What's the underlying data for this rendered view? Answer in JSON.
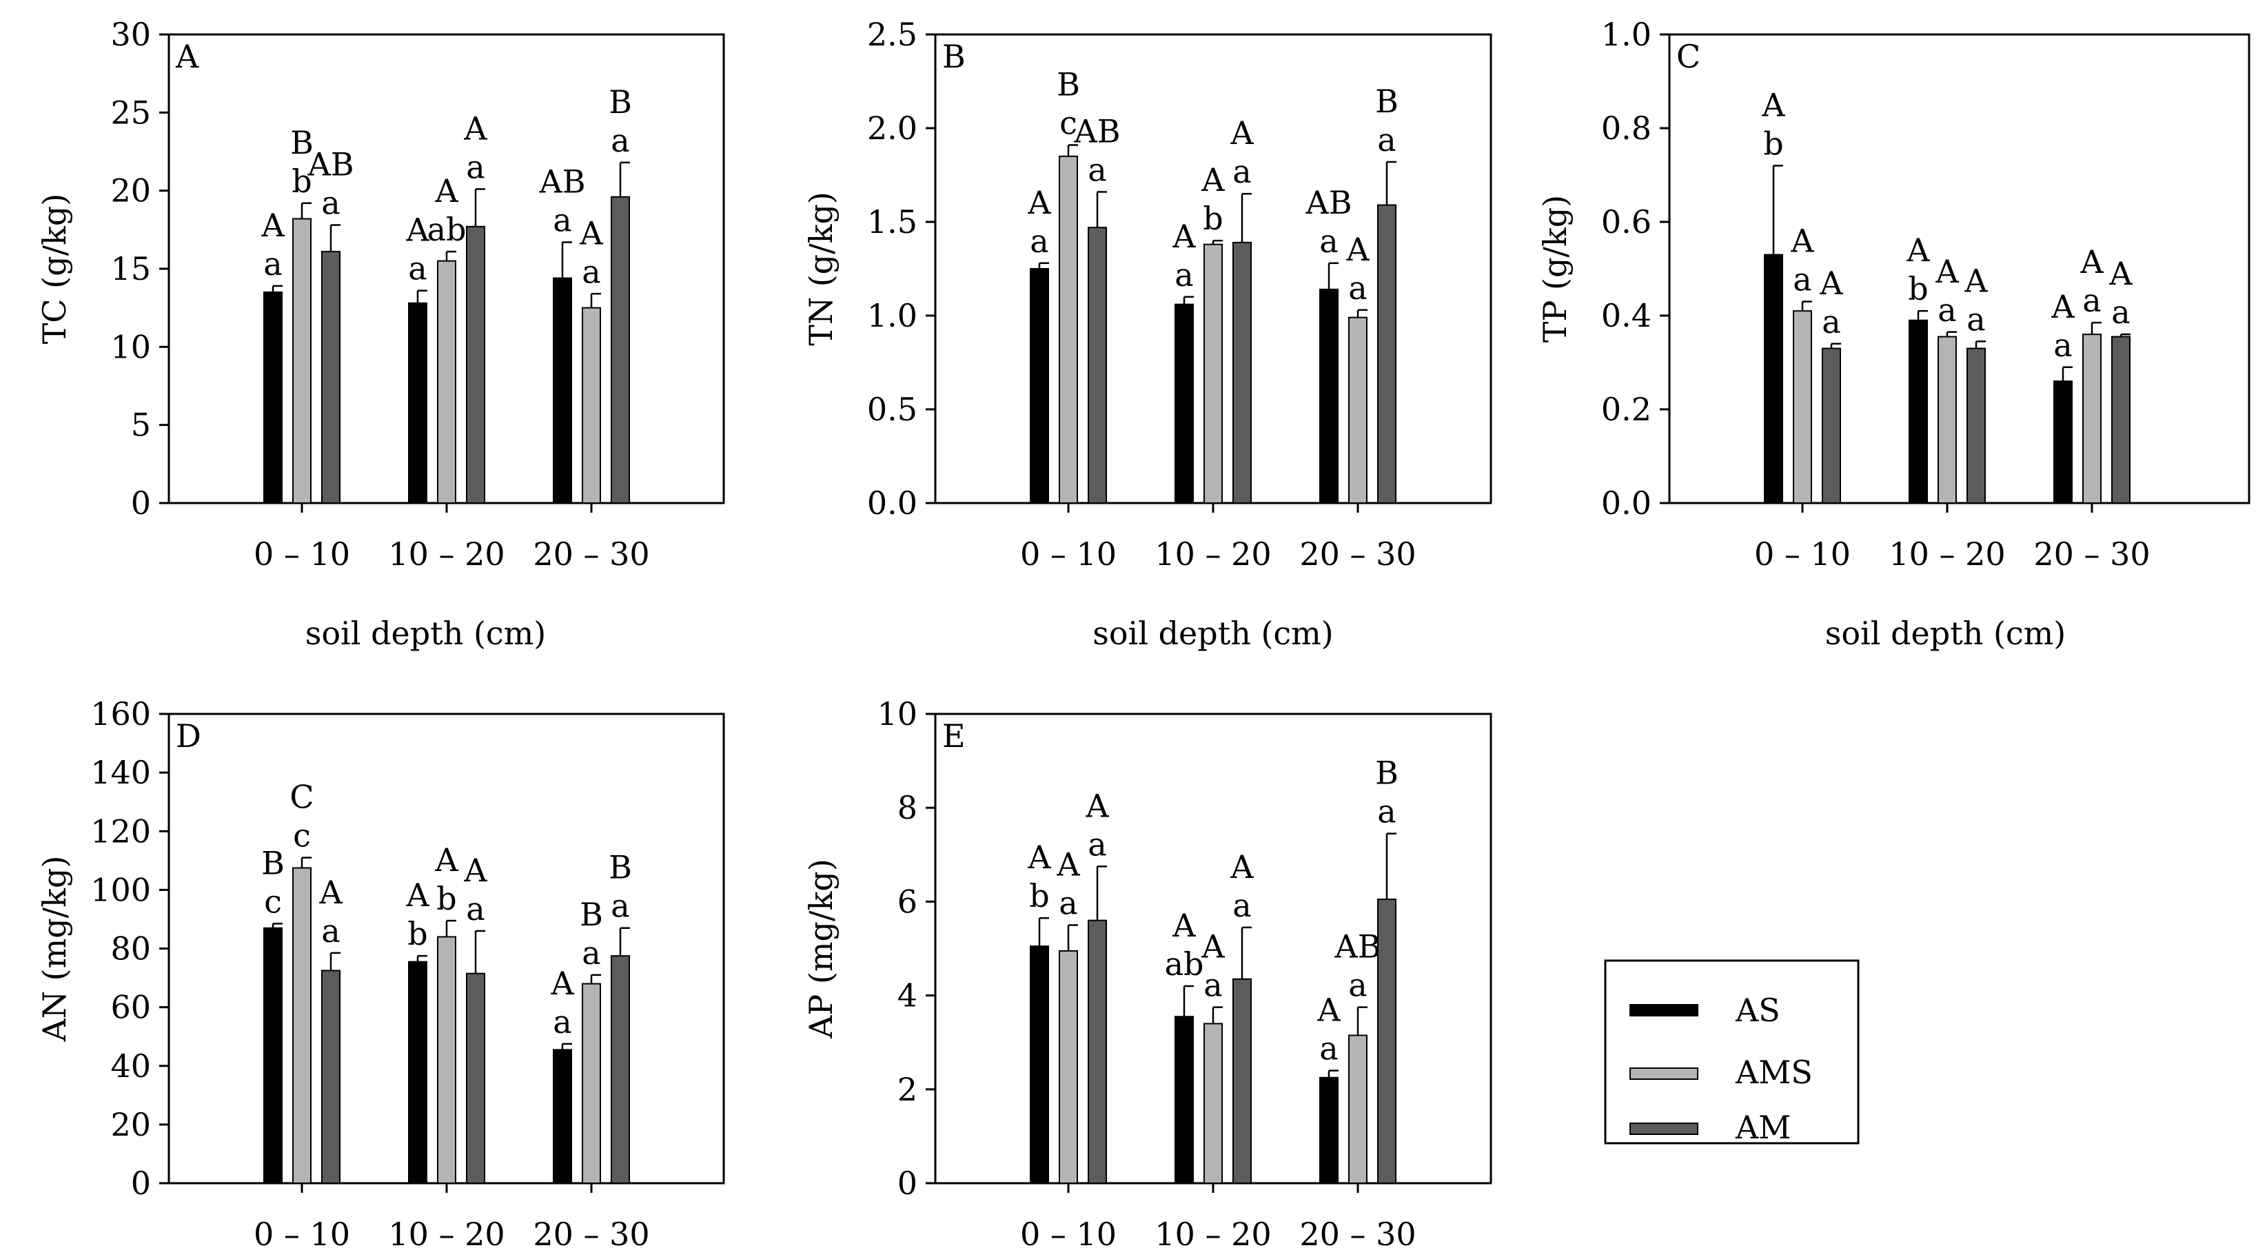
{
  "figure": {
    "xlabel_common": "soil depth (cm)",
    "legend_entries": [
      "AS",
      "AMS",
      "AM"
    ]
  },
  "series_colors": {
    "AS": "#000000",
    "AMS": "#b4b4b4",
    "AM": "#5c5c5c"
  },
  "chart_data": [
    {
      "id": "A",
      "type": "bar",
      "panel_label": "A",
      "ylabel": "TC (g/kg)",
      "xlabel": "soil depth (cm)",
      "ylim": [
        0,
        30
      ],
      "yticks": [
        "0",
        "5",
        "10",
        "15",
        "20",
        "25",
        "30"
      ],
      "categories": [
        "0 – 10",
        "10 – 20",
        "20 – 30"
      ],
      "series": [
        {
          "name": "AS",
          "values": [
            13.5,
            12.8,
            14.4
          ],
          "errors": [
            0.4,
            0.8,
            2.3
          ],
          "lower_letters": [
            "a",
            "a",
            "a"
          ],
          "upper_letters": [
            "A",
            "A",
            "AB"
          ]
        },
        {
          "name": "AMS",
          "values": [
            18.2,
            15.5,
            12.5
          ],
          "errors": [
            1.0,
            0.6,
            0.9
          ],
          "lower_letters": [
            "b",
            "ab",
            "a"
          ],
          "upper_letters": [
            "B",
            "A",
            "A"
          ]
        },
        {
          "name": "AM",
          "values": [
            16.1,
            17.7,
            19.6
          ],
          "errors": [
            1.7,
            2.4,
            2.2
          ],
          "lower_letters": [
            "a",
            "a",
            "a"
          ],
          "upper_letters": [
            "AB",
            "A",
            "B"
          ]
        }
      ]
    },
    {
      "id": "B",
      "type": "bar",
      "panel_label": "B",
      "ylabel": "TN (g/kg)",
      "xlabel": "soil depth (cm)",
      "ylim": [
        0,
        2.5
      ],
      "yticks": [
        "0.0",
        "0.5",
        "1.0",
        "1.5",
        "2.0",
        "2.5"
      ],
      "categories": [
        "0 – 10",
        "10 – 20",
        "20 – 30"
      ],
      "series": [
        {
          "name": "AS",
          "values": [
            1.25,
            1.06,
            1.14
          ],
          "errors": [
            0.03,
            0.04,
            0.14
          ],
          "lower_letters": [
            "a",
            "a",
            "a"
          ],
          "upper_letters": [
            "A",
            "A",
            "AB"
          ]
        },
        {
          "name": "AMS",
          "values": [
            1.85,
            1.38,
            0.99
          ],
          "errors": [
            0.06,
            0.02,
            0.04
          ],
          "lower_letters": [
            "c",
            "b",
            "a"
          ],
          "upper_letters": [
            "B",
            "A",
            "A"
          ]
        },
        {
          "name": "AM",
          "values": [
            1.47,
            1.39,
            1.59
          ],
          "errors": [
            0.19,
            0.26,
            0.23
          ],
          "lower_letters": [
            "a",
            "a",
            "a"
          ],
          "upper_letters": [
            "AB",
            "A",
            "B"
          ]
        }
      ]
    },
    {
      "id": "C",
      "type": "bar",
      "panel_label": "C",
      "ylabel": "TP (g/kg)",
      "xlabel": "soil depth (cm)",
      "ylim": [
        0,
        1.0
      ],
      "yticks": [
        "0.0",
        "0.2",
        "0.4",
        "0.6",
        "0.8",
        "1.0"
      ],
      "categories": [
        "0 – 10",
        "10 – 20",
        "20 – 30"
      ],
      "series": [
        {
          "name": "AS",
          "values": [
            0.53,
            0.39,
            0.26
          ],
          "errors": [
            0.19,
            0.02,
            0.03
          ],
          "lower_letters": [
            "b",
            "b",
            "a"
          ],
          "upper_letters": [
            "A",
            "A",
            "A"
          ]
        },
        {
          "name": "AMS",
          "values": [
            0.41,
            0.355,
            0.36
          ],
          "errors": [
            0.02,
            0.01,
            0.025
          ],
          "lower_letters": [
            "a",
            "a",
            "a"
          ],
          "upper_letters": [
            "A",
            "A",
            "A"
          ]
        },
        {
          "name": "AM",
          "values": [
            0.33,
            0.33,
            0.355
          ],
          "errors": [
            0.01,
            0.015,
            0.005
          ],
          "lower_letters": [
            "a",
            "a",
            "a"
          ],
          "upper_letters": [
            "A",
            "A",
            "A"
          ]
        }
      ]
    },
    {
      "id": "D",
      "type": "bar",
      "panel_label": "D",
      "ylabel": "AN (mg/kg)",
      "xlabel": "",
      "ylim": [
        0,
        160
      ],
      "yticks": [
        "0",
        "20",
        "40",
        "60",
        "80",
        "100",
        "120",
        "140",
        "160"
      ],
      "categories": [
        "0 – 10",
        "10 – 20",
        "20 – 30"
      ],
      "series": [
        {
          "name": "AS",
          "values": [
            87,
            75.5,
            45.5
          ],
          "errors": [
            1.5,
            2.0,
            2.0
          ],
          "lower_letters": [
            "c",
            "b",
            "a"
          ],
          "upper_letters": [
            "B",
            "A",
            "A"
          ]
        },
        {
          "name": "AMS",
          "values": [
            107.5,
            84,
            68
          ],
          "errors": [
            3.5,
            5.5,
            3.0
          ],
          "lower_letters": [
            "c",
            "b",
            "a"
          ],
          "upper_letters": [
            "C",
            "A",
            "B"
          ]
        },
        {
          "name": "AM",
          "values": [
            72.5,
            71.5,
            77.5
          ],
          "errors": [
            6.0,
            14.5,
            9.5
          ],
          "lower_letters": [
            "a",
            "a",
            "a"
          ],
          "upper_letters": [
            "A",
            "A",
            "B"
          ]
        }
      ]
    },
    {
      "id": "E",
      "type": "bar",
      "panel_label": "E",
      "ylabel": "AP (mg/kg)",
      "xlabel": "",
      "ylim": [
        0,
        10
      ],
      "yticks": [
        "0",
        "2",
        "4",
        "6",
        "8",
        "10"
      ],
      "categories": [
        "0 – 10",
        "10 – 20",
        "20 – 30"
      ],
      "series": [
        {
          "name": "AS",
          "values": [
            5.05,
            3.55,
            2.25
          ],
          "errors": [
            0.6,
            0.65,
            0.15
          ],
          "lower_letters": [
            "b",
            "ab",
            "a"
          ],
          "upper_letters": [
            "A",
            "A",
            "A"
          ]
        },
        {
          "name": "AMS",
          "values": [
            4.95,
            3.4,
            3.15
          ],
          "errors": [
            0.55,
            0.35,
            0.6
          ],
          "lower_letters": [
            "a",
            "a",
            "a"
          ],
          "upper_letters": [
            "A",
            "A",
            "AB"
          ]
        },
        {
          "name": "AM",
          "values": [
            5.6,
            4.35,
            6.05
          ],
          "errors": [
            1.15,
            1.1,
            1.4
          ],
          "lower_letters": [
            "a",
            "a",
            "a"
          ],
          "upper_letters": [
            "A",
            "A",
            "B"
          ]
        }
      ]
    }
  ]
}
